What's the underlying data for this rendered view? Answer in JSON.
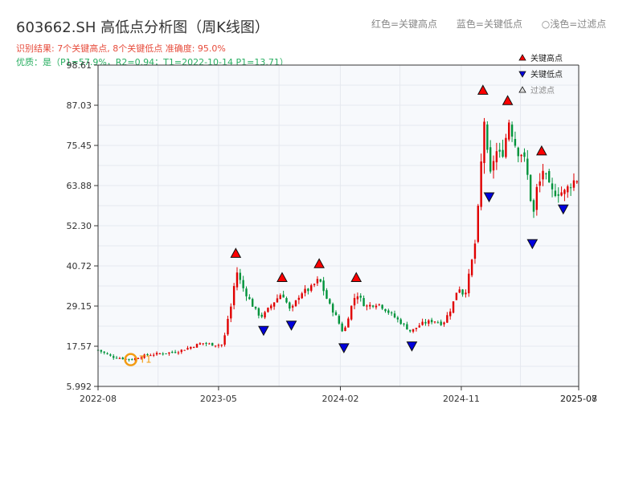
{
  "header": {
    "title": "603662.SH 高低点分析图（周K线图）",
    "result_line": "识别结果: 7个关键高点, 8个关键低点   准确度: 95.0%",
    "quality_line": "优质：是（P1=57.9%，R2=0.94；T1=2022-10-14 P1=13.71）"
  },
  "top_legend": {
    "red": "红色=关键高点",
    "blue": "蓝色=关键低点",
    "gray": "○浅色=过滤点"
  },
  "chart_data": {
    "type": "candlestick",
    "title": "603662.SH 高低点分析图（周K线图）",
    "y_ticks": [
      "98.61",
      "87.03",
      "75.45",
      "63.88",
      "52.30",
      "40.72",
      "29.15",
      "17.57",
      "5.992"
    ],
    "ylim": [
      5.992,
      98.61
    ],
    "x_ticks": [
      "2022-08",
      "2023-05",
      "2024-02",
      "2024-11",
      "2025-07",
      "2025-08"
    ],
    "xlim": [
      "2022-08-01",
      "2025-07-25"
    ],
    "legend": {
      "position": "top-right",
      "items": [
        {
          "label": "关键高点",
          "color": "#ff0000",
          "marker": "triangle-up"
        },
        {
          "label": "关键低点",
          "color": "#0000dd",
          "marker": "triangle-down"
        },
        {
          "label": "过滤点",
          "color": "#dddddd",
          "marker": "triangle-up"
        }
      ]
    },
    "t1_label": "T1",
    "t1_point": {
      "date": "2022-10-14",
      "price": 13.71
    },
    "key_highs": [
      {
        "date": "2023-06-09",
        "price": 42.5
      },
      {
        "date": "2023-09-22",
        "price": 35.5
      },
      {
        "date": "2023-12-15",
        "price": 39.5
      },
      {
        "date": "2024-03-08",
        "price": 35.5
      },
      {
        "date": "2024-12-20",
        "price": 89.5
      },
      {
        "date": "2025-02-14",
        "price": 86.5
      },
      {
        "date": "2025-05-02",
        "price": 72.0
      }
    ],
    "key_lows": [
      {
        "date": "2023-08-11",
        "price": 24.0
      },
      {
        "date": "2023-10-13",
        "price": 25.5
      },
      {
        "date": "2024-02-09",
        "price": 19.0
      },
      {
        "date": "2024-07-12",
        "price": 19.5
      },
      {
        "date": "2025-01-03",
        "price": 62.5
      },
      {
        "date": "2025-04-11",
        "price": 49.0
      },
      {
        "date": "2025-06-20",
        "price": 59.0
      }
    ],
    "close_path": [
      [
        "2022-08-01",
        16.5
      ],
      [
        "2022-09-02",
        14.5
      ],
      [
        "2022-10-14",
        13.71
      ],
      [
        "2022-11-18",
        15.0
      ],
      [
        "2022-12-30",
        15.6
      ],
      [
        "2023-01-27",
        16.0
      ],
      [
        "2023-02-24",
        17.2
      ],
      [
        "2023-03-24",
        18.5
      ],
      [
        "2023-04-21",
        18.0
      ],
      [
        "2023-05-12",
        18.0
      ],
      [
        "2023-05-19",
        24.0
      ],
      [
        "2023-06-02",
        31.0
      ],
      [
        "2023-06-09",
        40.0
      ],
      [
        "2023-06-23",
        35.0
      ],
      [
        "2023-07-14",
        30.0
      ],
      [
        "2023-07-28",
        27.0
      ],
      [
        "2023-08-11",
        26.0
      ],
      [
        "2023-09-01",
        30.0
      ],
      [
        "2023-09-22",
        33.0
      ],
      [
        "2023-10-13",
        27.0
      ],
      [
        "2023-11-03",
        33.0
      ],
      [
        "2023-11-24",
        34.0
      ],
      [
        "2023-12-15",
        37.0
      ],
      [
        "2024-01-05",
        30.0
      ],
      [
        "2024-01-19",
        27.0
      ],
      [
        "2024-02-09",
        21.0
      ],
      [
        "2024-02-23",
        28.0
      ],
      [
        "2024-03-08",
        33.0
      ],
      [
        "2024-03-29",
        29.0
      ],
      [
        "2024-04-26",
        30.0
      ],
      [
        "2024-05-24",
        27.0
      ],
      [
        "2024-06-21",
        24.0
      ],
      [
        "2024-07-12",
        21.5
      ],
      [
        "2024-08-02",
        24.0
      ],
      [
        "2024-08-30",
        25.0
      ],
      [
        "2024-09-20",
        24.0
      ],
      [
        "2024-10-11",
        29.0
      ],
      [
        "2024-10-25",
        35.0
      ],
      [
        "2024-11-08",
        32.0
      ],
      [
        "2024-11-22",
        40.0
      ],
      [
        "2024-12-06",
        50.0
      ],
      [
        "2024-12-13",
        66.0
      ],
      [
        "2024-12-20",
        76.0
      ],
      [
        "2025-01-03",
        67.0
      ],
      [
        "2025-01-17",
        74.0
      ],
      [
        "2025-01-31",
        72.0
      ],
      [
        "2025-02-14",
        80.0
      ],
      [
        "2025-03-07",
        74.0
      ],
      [
        "2025-03-21",
        73.0
      ],
      [
        "2025-04-04",
        64.0
      ],
      [
        "2025-04-11",
        55.0
      ],
      [
        "2025-04-18",
        62.0
      ],
      [
        "2025-05-02",
        66.0
      ],
      [
        "2025-05-23",
        62.0
      ],
      [
        "2025-06-20",
        62.0
      ],
      [
        "2025-07-11",
        65.0
      ],
      [
        "2025-07-25",
        66.0
      ]
    ],
    "grid": true
  }
}
